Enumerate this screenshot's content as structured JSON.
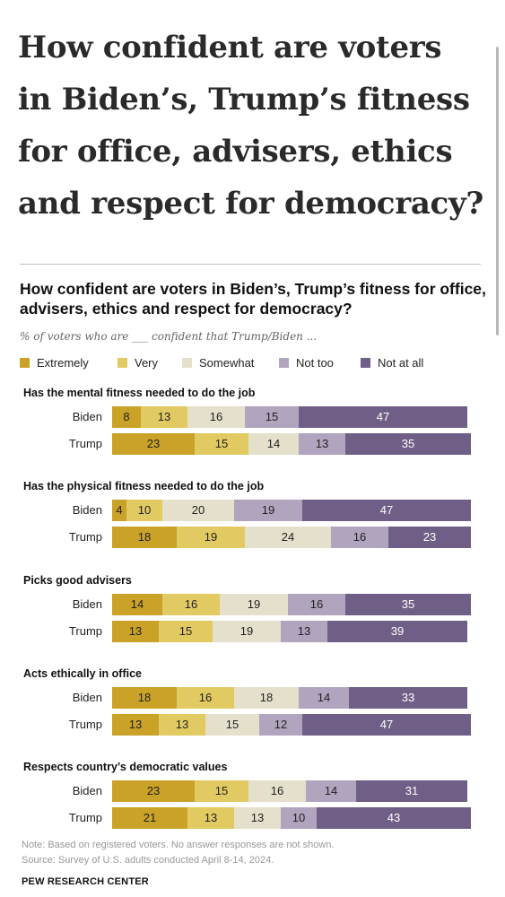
{
  "headline": "How confident are voters in Biden’s, Trump’s fitness for office, advisers, ethics and respect for democracy?",
  "chart_data": {
    "type": "bar",
    "orientation": "horizontal",
    "stacked": true,
    "title": "How confident are voters in Biden’s, Trump’s fitness for office, advisers, ethics and respect for democracy?",
    "subtitle": "% of voters who are ___ confident that Trump/Biden ...",
    "legend_placement": "top",
    "grid": false,
    "categories": [
      "Extremely",
      "Very",
      "Somewhat",
      "Not too",
      "Not at all"
    ],
    "colors": [
      "#c9a227",
      "#e2ca62",
      "#e5e0cc",
      "#b1a4bf",
      "#6f5f86"
    ],
    "groups": [
      {
        "title": "Has the mental fitness needed to do the job",
        "rows": [
          {
            "label": "Biden",
            "values": [
              8,
              13,
              16,
              15,
              47
            ]
          },
          {
            "label": "Trump",
            "values": [
              23,
              15,
              14,
              13,
              35
            ]
          }
        ]
      },
      {
        "title": "Has the physical fitness needed to do the job",
        "rows": [
          {
            "label": "Biden",
            "values": [
              4,
              10,
              20,
              19,
              47
            ]
          },
          {
            "label": "Trump",
            "values": [
              18,
              19,
              24,
              16,
              23
            ]
          }
        ]
      },
      {
        "title": "Picks good advisers",
        "rows": [
          {
            "label": "Biden",
            "values": [
              14,
              16,
              19,
              16,
              35
            ]
          },
          {
            "label": "Trump",
            "values": [
              13,
              15,
              19,
              13,
              39
            ]
          }
        ]
      },
      {
        "title": "Acts ethically in office",
        "rows": [
          {
            "label": "Biden",
            "values": [
              18,
              16,
              18,
              14,
              33
            ]
          },
          {
            "label": "Trump",
            "values": [
              13,
              13,
              15,
              12,
              47
            ]
          }
        ]
      },
      {
        "title": "Respects country’s democratic values",
        "rows": [
          {
            "label": "Biden",
            "values": [
              23,
              15,
              16,
              14,
              31
            ]
          },
          {
            "label": "Trump",
            "values": [
              21,
              13,
              13,
              10,
              43
            ]
          }
        ]
      }
    ]
  },
  "notes": {
    "note": "Note: Based on registered voters. No answer responses are not shown.",
    "source": "Source: Survey of U.S. adults conducted April 8-14, 2024.",
    "brand": "PEW RESEARCH CENTER"
  }
}
